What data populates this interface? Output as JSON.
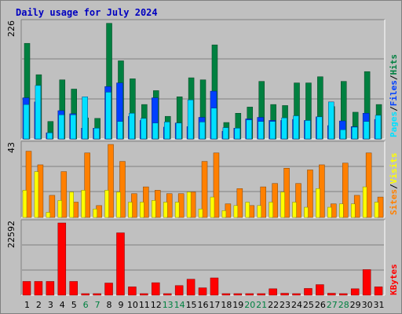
{
  "title": "Daily usage for July 2024",
  "colors": {
    "hits": "#008040",
    "files": "#0040ff",
    "pages": "#00e0ff",
    "visits": "#ffff00",
    "sites": "#ff8000",
    "kbytes": "#ff0000",
    "weekday_label": "#000000",
    "weekend_label": "#008040",
    "title": "#0000c0",
    "panel_bg": "#c0c0c0",
    "grid": "#808080"
  },
  "legends": {
    "top": [
      {
        "text": "Hits",
        "color": "#008040"
      },
      {
        "text": "/",
        "color": "#000000"
      },
      {
        "text": "Files",
        "color": "#0040ff"
      },
      {
        "text": "/",
        "color": "#000000"
      },
      {
        "text": "Pages",
        "color": "#00e0ff"
      }
    ],
    "middle": [
      {
        "text": "Visits",
        "color": "#ffff00"
      },
      {
        "text": "/",
        "color": "#000000"
      },
      {
        "text": "Sites",
        "color": "#ff8000"
      }
    ],
    "bottom": [
      {
        "text": "KBytes",
        "color": "#ff0000"
      }
    ]
  },
  "chart_data": [
    {
      "type": "bar",
      "title": "Daily usage for July 2024",
      "y_max_label": "226",
      "ylim": [
        0,
        226
      ],
      "grid": true,
      "categories": [
        "1",
        "2",
        "3",
        "4",
        "5",
        "6",
        "7",
        "8",
        "9",
        "10",
        "11",
        "12",
        "13",
        "14",
        "15",
        "16",
        "17",
        "18",
        "19",
        "20",
        "21",
        "22",
        "23",
        "24",
        "25",
        "26",
        "27",
        "28",
        "29",
        "30",
        "31"
      ],
      "weekend_days": [
        "6",
        "7",
        "13",
        "14",
        "20",
        "21",
        "27",
        "28"
      ],
      "series": [
        {
          "name": "Hits",
          "values": [
            186,
            125,
            34,
            115,
            97,
            41,
            40,
            225,
            152,
            117,
            67,
            94,
            44,
            82,
            119,
            115,
            183,
            32,
            50,
            62,
            112,
            67,
            65,
            109,
            109,
            121,
            63,
            112,
            52,
            131,
            67
          ]
        },
        {
          "name": "Files",
          "values": [
            80,
            72,
            12,
            55,
            49,
            21,
            21,
            102,
            109,
            44,
            36,
            80,
            23,
            31,
            24,
            42,
            93,
            15,
            21,
            39,
            42,
            36,
            36,
            38,
            36,
            43,
            26,
            35,
            24,
            50,
            38
          ]
        },
        {
          "name": "Pages",
          "values": [
            67,
            104,
            12,
            47,
            47,
            82,
            21,
            91,
            34,
            50,
            40,
            31,
            33,
            31,
            76,
            33,
            60,
            22,
            21,
            37,
            34,
            34,
            41,
            45,
            36,
            43,
            72,
            18,
            23,
            34,
            46
          ]
        }
      ]
    },
    {
      "type": "bar",
      "y_max_label": "43",
      "ylim": [
        0,
        43
      ],
      "grid": true,
      "categories": [
        "1",
        "2",
        "3",
        "4",
        "5",
        "6",
        "7",
        "8",
        "9",
        "10",
        "11",
        "12",
        "13",
        "14",
        "15",
        "16",
        "17",
        "18",
        "19",
        "20",
        "21",
        "22",
        "23",
        "24",
        "25",
        "26",
        "27",
        "28",
        "29",
        "30",
        "31"
      ],
      "series": [
        {
          "name": "Visits",
          "values": [
            16,
            27,
            3,
            10,
            15,
            16,
            5,
            16,
            15,
            9,
            9,
            10,
            9,
            9,
            15,
            5,
            12,
            4,
            7,
            9,
            7,
            9,
            15,
            9,
            6,
            17,
            6,
            8,
            8,
            18,
            9
          ]
        },
        {
          "name": "Sites",
          "values": [
            39,
            31,
            13,
            27,
            9,
            38,
            7,
            43,
            33,
            14,
            18,
            16,
            14,
            14,
            15,
            33,
            38,
            8,
            17,
            7,
            18,
            20,
            29,
            20,
            28,
            31,
            8,
            32,
            13,
            38,
            12
          ]
        }
      ]
    },
    {
      "type": "bar",
      "y_max_label": "22592",
      "ylim": [
        0,
        22592
      ],
      "grid": true,
      "categories": [
        "1",
        "2",
        "3",
        "4",
        "5",
        "6",
        "7",
        "8",
        "9",
        "10",
        "11",
        "12",
        "13",
        "14",
        "15",
        "16",
        "17",
        "18",
        "19",
        "20",
        "21",
        "22",
        "23",
        "24",
        "25",
        "26",
        "27",
        "28",
        "29",
        "30",
        "31"
      ],
      "series": [
        {
          "name": "KBytes",
          "values": [
            4300,
            4300,
            4300,
            22592,
            4300,
            400,
            200,
            3800,
            19500,
            2600,
            200,
            3900,
            200,
            3000,
            5000,
            2300,
            5400,
            200,
            400,
            400,
            400,
            2000,
            600,
            400,
            2100,
            3300,
            600,
            400,
            2000,
            8000,
            2600
          ]
        }
      ]
    }
  ]
}
